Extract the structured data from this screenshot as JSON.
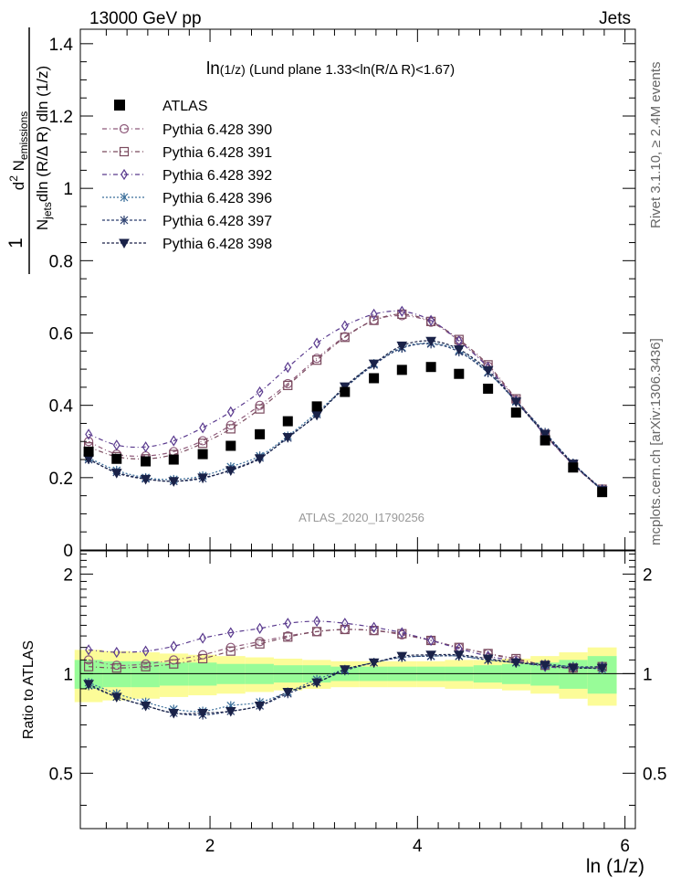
{
  "header": {
    "left": "13000 GeV pp",
    "right": "Jets"
  },
  "side_labels": {
    "rivet": "Rivet 3.1.10, ≥ 2.4M events",
    "mcplots": "mcplots.cern.ch [arXiv:1306.3436]"
  },
  "chart_data": [
    {
      "type": "line",
      "panel": "main",
      "title_main": "ln",
      "title_sub": "(1/z)",
      "title_rest": " (Lund plane 1.33<ln(R/Δ R)<1.67)",
      "ylabel": {
        "one": "1",
        "njets": "N",
        "njets_sub": "jets",
        "den_rest": "dln (R/Δ R) dln (1/z)",
        "num_d": "d",
        "num_sup": "2",
        "num_n": " N",
        "num_sub": "emissions"
      },
      "watermark": "ATLAS_2020_I1790256",
      "xlim": [
        0.75,
        6.1
      ],
      "ylim": [
        0,
        1.44
      ],
      "yticks": [
        0,
        0.2,
        0.4,
        0.6,
        0.8,
        1,
        1.2,
        1.4
      ],
      "ytick_labels": [
        "0",
        "0.2",
        "0.4",
        "0.6",
        "0.8",
        "1",
        "1.2",
        "1.4"
      ],
      "x": [
        0.83,
        1.1,
        1.38,
        1.65,
        1.93,
        2.2,
        2.48,
        2.75,
        3.03,
        3.3,
        3.58,
        3.85,
        4.13,
        4.4,
        4.68,
        4.95,
        5.23,
        5.5,
        5.78
      ],
      "atlas": {
        "name": "ATLAS",
        "color": "#000000",
        "values": [
          0.272,
          0.252,
          0.245,
          0.25,
          0.265,
          0.288,
          0.32,
          0.356,
          0.397,
          0.437,
          0.475,
          0.498,
          0.506,
          0.487,
          0.446,
          0.38,
          0.303,
          0.228,
          0.16
        ]
      },
      "series": [
        {
          "name": "Pythia 6.428 390",
          "color": "#8e5a7a",
          "marker": "circle",
          "dash": "5,3,1,3",
          "values": [
            0.3,
            0.265,
            0.26,
            0.272,
            0.302,
            0.345,
            0.4,
            0.46,
            0.53,
            0.59,
            0.635,
            0.648,
            0.63,
            0.578,
            0.508,
            0.415,
            0.318,
            0.236,
            0.165
          ]
        },
        {
          "name": "Pythia 6.428 391",
          "color": "#7a4a5e",
          "marker": "square",
          "dash": "5,3,1,3",
          "values": [
            0.285,
            0.258,
            0.252,
            0.264,
            0.295,
            0.335,
            0.39,
            0.455,
            0.525,
            0.588,
            0.635,
            0.652,
            0.632,
            0.582,
            0.512,
            0.418,
            0.32,
            0.237,
            0.168
          ]
        },
        {
          "name": "Pythia 6.428 392",
          "color": "#5a3a8e",
          "marker": "diamond",
          "dash": "5,3,1,3",
          "values": [
            0.32,
            0.29,
            0.285,
            0.302,
            0.338,
            0.382,
            0.437,
            0.505,
            0.572,
            0.62,
            0.652,
            0.66,
            0.635,
            0.578,
            0.505,
            0.412,
            0.318,
            0.236,
            0.167
          ]
        },
        {
          "name": "Pythia 6.428 396",
          "color": "#3a6e9a",
          "marker": "star",
          "dash": "2,2",
          "values": [
            0.255,
            0.22,
            0.2,
            0.195,
            0.205,
            0.23,
            0.26,
            0.315,
            0.38,
            0.45,
            0.515,
            0.56,
            0.572,
            0.552,
            0.492,
            0.41,
            0.322,
            0.24,
            0.165
          ]
        },
        {
          "name": "Pythia 6.428 397",
          "color": "#2a3e6e",
          "marker": "star",
          "dash": "3,2",
          "values": [
            0.25,
            0.215,
            0.197,
            0.19,
            0.198,
            0.222,
            0.255,
            0.31,
            0.375,
            0.448,
            0.512,
            0.558,
            0.57,
            0.548,
            0.49,
            0.412,
            0.325,
            0.24,
            0.168
          ]
        },
        {
          "name": "Pythia 6.428 398",
          "color": "#1a2248",
          "marker": "triangle",
          "dash": "3,2",
          "values": [
            0.252,
            0.213,
            0.196,
            0.19,
            0.2,
            0.22,
            0.253,
            0.312,
            0.373,
            0.452,
            0.515,
            0.565,
            0.578,
            0.555,
            0.497,
            0.41,
            0.32,
            0.238,
            0.165
          ]
        }
      ]
    },
    {
      "type": "line",
      "panel": "ratio",
      "ylabel": "Ratio to ATLAS",
      "xlabel": "ln (1/z)",
      "xlim": [
        0.75,
        6.1
      ],
      "ylim": [
        0.34,
        2.35
      ],
      "yticks": [
        0.5,
        1,
        2
      ],
      "ytick_labels": [
        "0.5",
        "1",
        "2"
      ],
      "xticks": [
        2,
        4,
        6
      ],
      "xtick_labels": [
        "2",
        "4",
        "6"
      ],
      "band_colors": {
        "outer": "#fcfc98",
        "inner": "#98fc98"
      },
      "band_outer": [
        0.18,
        0.17,
        0.16,
        0.15,
        0.14,
        0.13,
        0.12,
        0.11,
        0.1,
        0.09,
        0.09,
        0.09,
        0.09,
        0.1,
        0.1,
        0.11,
        0.13,
        0.16,
        0.2
      ],
      "band_inner": [
        0.1,
        0.09,
        0.09,
        0.08,
        0.08,
        0.07,
        0.07,
        0.06,
        0.06,
        0.05,
        0.05,
        0.05,
        0.05,
        0.05,
        0.06,
        0.07,
        0.08,
        0.1,
        0.13
      ],
      "series_ratio": [
        [
          1.1,
          1.06,
          1.07,
          1.1,
          1.14,
          1.2,
          1.25,
          1.3,
          1.34,
          1.36,
          1.35,
          1.31,
          1.26,
          1.2,
          1.15,
          1.1,
          1.06,
          1.04,
          1.04
        ],
        [
          1.05,
          1.04,
          1.05,
          1.07,
          1.11,
          1.17,
          1.23,
          1.29,
          1.34,
          1.36,
          1.35,
          1.32,
          1.26,
          1.2,
          1.15,
          1.11,
          1.06,
          1.04,
          1.05
        ],
        [
          1.18,
          1.16,
          1.17,
          1.21,
          1.28,
          1.33,
          1.37,
          1.42,
          1.44,
          1.42,
          1.38,
          1.33,
          1.26,
          1.19,
          1.13,
          1.09,
          1.05,
          1.04,
          1.05
        ],
        [
          0.94,
          0.87,
          0.82,
          0.78,
          0.77,
          0.8,
          0.82,
          0.88,
          0.96,
          1.03,
          1.08,
          1.12,
          1.13,
          1.13,
          1.1,
          1.08,
          1.06,
          1.05,
          1.03
        ],
        [
          0.92,
          0.85,
          0.8,
          0.76,
          0.75,
          0.77,
          0.8,
          0.87,
          0.94,
          1.02,
          1.08,
          1.12,
          1.13,
          1.13,
          1.1,
          1.08,
          1.07,
          1.05,
          1.05
        ],
        [
          0.93,
          0.85,
          0.8,
          0.76,
          0.76,
          0.77,
          0.8,
          0.88,
          0.94,
          1.03,
          1.08,
          1.13,
          1.14,
          1.14,
          1.11,
          1.08,
          1.06,
          1.04,
          1.04
        ]
      ]
    }
  ]
}
